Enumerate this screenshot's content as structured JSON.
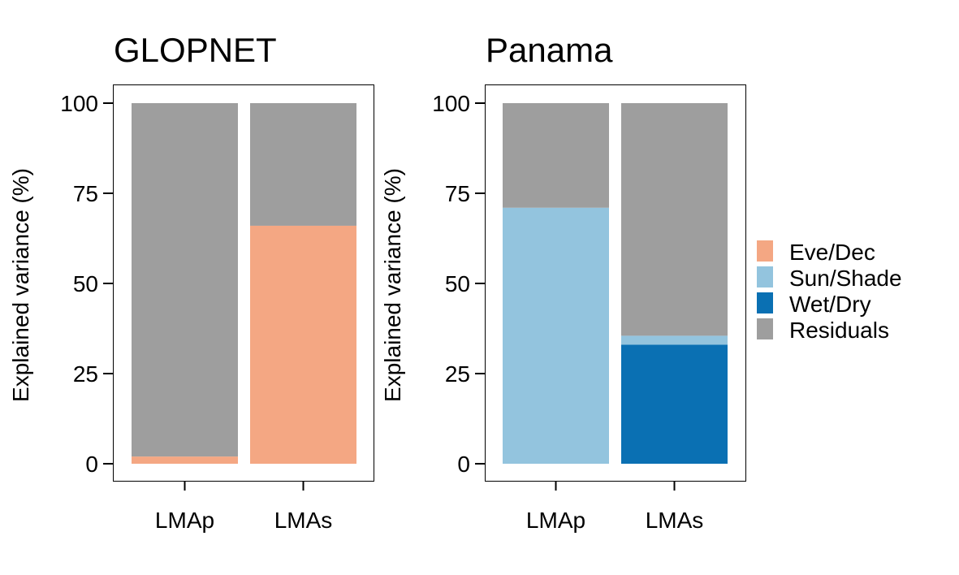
{
  "colors": {
    "Eve/Dec": "#F4A783",
    "Sun/Shade": "#93C4DE",
    "Wet/Dry": "#0A70B3",
    "Residuals": "#9E9E9E"
  },
  "legend": {
    "items": [
      "Eve/Dec",
      "Sun/Shade",
      "Wet/Dry",
      "Residuals"
    ]
  },
  "chart_data": [
    {
      "type": "bar",
      "stacked": true,
      "title": "GLOPNET",
      "ylabel": "Explained variance (%)",
      "xlabel": "",
      "ylim": [
        0,
        100
      ],
      "yticks": [
        0,
        25,
        50,
        75,
        100
      ],
      "categories": [
        "LMAp",
        "LMAs"
      ],
      "series": [
        {
          "name": "Eve/Dec",
          "values": [
            2,
            66
          ]
        },
        {
          "name": "Residuals",
          "values": [
            98,
            34
          ]
        }
      ]
    },
    {
      "type": "bar",
      "stacked": true,
      "title": "Panama",
      "ylabel": "Explained variance (%)",
      "xlabel": "",
      "ylim": [
        0,
        100
      ],
      "yticks": [
        0,
        25,
        50,
        75,
        100
      ],
      "categories": [
        "LMAp",
        "LMAs"
      ],
      "series": [
        {
          "name": "Wet/Dry",
          "values": [
            0,
            33
          ]
        },
        {
          "name": "Sun/Shade",
          "values": [
            71,
            2.5
          ]
        },
        {
          "name": "Residuals",
          "values": [
            29,
            64.5
          ]
        }
      ]
    }
  ]
}
